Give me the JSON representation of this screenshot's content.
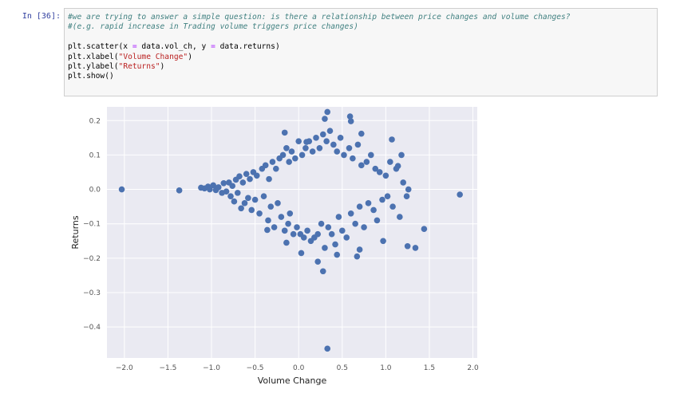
{
  "cell": {
    "prompt": "In [36]:",
    "comment1": "#we are trying to answer a simple question: is there a relationship between price changes and volume changes?",
    "comment2": "#(e.g. rapid increase in Trading volume triggers price changes)",
    "code1_pre": "plt.scatter(x ",
    "code1_eq1": "=",
    "code1_mid": " data.vol_ch, y ",
    "code1_eq2": "=",
    "code1_post": " data.returns)",
    "code2_pre": "plt.xlabel(",
    "code2_str": "\"Volume Change\"",
    "code2_post": ")",
    "code3_pre": "plt.ylabel(",
    "code3_str": "\"Returns\"",
    "code3_post": ")",
    "code4": "plt.show()"
  },
  "chart_data": {
    "type": "scatter",
    "xlabel": "Volume Change",
    "ylabel": "Returns",
    "xlim": [
      -2.2,
      2.05
    ],
    "ylim": [
      -0.49,
      0.24
    ],
    "x_ticks": [
      "−2.0",
      "−1.5",
      "−1.0",
      "−0.5",
      "0.0",
      "0.5",
      "1.0",
      "1.5",
      "2.0"
    ],
    "x_tick_values": [
      -2.0,
      -1.5,
      -1.0,
      -0.5,
      0.0,
      0.5,
      1.0,
      1.5,
      2.0
    ],
    "y_ticks": [
      "0.2",
      "0.1",
      "0.0",
      "−0.1",
      "−0.2",
      "−0.3",
      "−0.4"
    ],
    "y_tick_values": [
      0.2,
      0.1,
      0.0,
      -0.1,
      -0.2,
      -0.3,
      -0.4
    ],
    "grid": true,
    "background": "#eaeaf2",
    "marker_color": "#4c72b0",
    "points": [
      [
        -2.03,
        0.0
      ],
      [
        -1.37,
        -0.003
      ],
      [
        -1.12,
        0.005
      ],
      [
        -1.08,
        0.003
      ],
      [
        -1.04,
        0.008
      ],
      [
        -1.02,
        0.0
      ],
      [
        -0.98,
        0.012
      ],
      [
        -0.95,
        -0.002
      ],
      [
        -0.92,
        0.006
      ],
      [
        -0.88,
        -0.01
      ],
      [
        -0.86,
        0.018
      ],
      [
        -0.83,
        -0.006
      ],
      [
        -0.8,
        0.02
      ],
      [
        -0.78,
        -0.02
      ],
      [
        -0.76,
        0.01
      ],
      [
        -0.74,
        -0.035
      ],
      [
        -0.72,
        0.028
      ],
      [
        -0.7,
        -0.01
      ],
      [
        -0.68,
        0.038
      ],
      [
        -0.66,
        -0.055
      ],
      [
        -0.64,
        0.02
      ],
      [
        -0.62,
        -0.04
      ],
      [
        -0.6,
        0.045
      ],
      [
        -0.58,
        -0.025
      ],
      [
        -0.56,
        0.03
      ],
      [
        -0.54,
        -0.06
      ],
      [
        -0.52,
        0.05
      ],
      [
        -0.5,
        -0.03
      ],
      [
        -0.48,
        0.04
      ],
      [
        -0.45,
        -0.07
      ],
      [
        -0.42,
        0.06
      ],
      [
        -0.4,
        -0.02
      ],
      [
        -0.38,
        0.07
      ],
      [
        -0.35,
        -0.09
      ],
      [
        -0.34,
        0.03
      ],
      [
        -0.32,
        -0.05
      ],
      [
        -0.3,
        0.08
      ],
      [
        -0.28,
        -0.11
      ],
      [
        -0.26,
        0.06
      ],
      [
        -0.24,
        -0.04
      ],
      [
        -0.22,
        0.09
      ],
      [
        -0.2,
        -0.08
      ],
      [
        -0.18,
        0.1
      ],
      [
        -0.16,
        -0.12
      ],
      [
        -0.14,
        0.12
      ],
      [
        -0.12,
        -0.1
      ],
      [
        -0.11,
        0.08
      ],
      [
        -0.1,
        -0.07
      ],
      [
        -0.08,
        0.11
      ],
      [
        -0.06,
        -0.13
      ],
      [
        -0.04,
        0.09
      ],
      [
        -0.02,
        -0.11
      ],
      [
        0.0,
        0.14
      ],
      [
        0.02,
        -0.13
      ],
      [
        0.04,
        0.1
      ],
      [
        0.06,
        -0.14
      ],
      [
        0.08,
        0.12
      ],
      [
        0.1,
        -0.12
      ],
      [
        0.12,
        0.14
      ],
      [
        0.14,
        -0.15
      ],
      [
        0.16,
        0.11
      ],
      [
        0.18,
        -0.14
      ],
      [
        0.2,
        0.15
      ],
      [
        0.22,
        -0.13
      ],
      [
        0.24,
        0.12
      ],
      [
        0.26,
        -0.1
      ],
      [
        0.28,
        0.16
      ],
      [
        0.3,
        -0.17
      ],
      [
        0.32,
        0.14
      ],
      [
        0.34,
        -0.11
      ],
      [
        0.36,
        0.17
      ],
      [
        0.38,
        -0.13
      ],
      [
        0.4,
        0.13
      ],
      [
        0.42,
        -0.16
      ],
      [
        0.44,
        0.11
      ],
      [
        0.46,
        -0.08
      ],
      [
        0.48,
        0.15
      ],
      [
        0.5,
        -0.12
      ],
      [
        0.52,
        0.1
      ],
      [
        0.55,
        -0.14
      ],
      [
        0.58,
        0.12
      ],
      [
        0.6,
        -0.07
      ],
      [
        0.62,
        0.09
      ],
      [
        0.65,
        -0.1
      ],
      [
        0.68,
        0.13
      ],
      [
        0.7,
        -0.05
      ],
      [
        0.72,
        0.07
      ],
      [
        0.75,
        -0.11
      ],
      [
        0.78,
        0.08
      ],
      [
        0.8,
        -0.04
      ],
      [
        0.83,
        0.1
      ],
      [
        0.86,
        -0.06
      ],
      [
        0.88,
        0.06
      ],
      [
        0.9,
        -0.09
      ],
      [
        0.93,
        0.05
      ],
      [
        0.96,
        -0.03
      ],
      [
        1.0,
        0.04
      ],
      [
        1.02,
        -0.02
      ],
      [
        1.05,
        0.08
      ],
      [
        1.08,
        -0.05
      ],
      [
        1.12,
        0.06
      ],
      [
        1.16,
        -0.08
      ],
      [
        1.2,
        0.02
      ],
      [
        1.24,
        -0.02
      ],
      [
        0.33,
        0.225
      ],
      [
        0.59,
        0.212
      ],
      [
        0.6,
        0.198
      ],
      [
        -0.16,
        0.165
      ],
      [
        0.72,
        0.162
      ],
      [
        0.3,
        0.205
      ],
      [
        0.09,
        0.138
      ],
      [
        1.07,
        0.145
      ],
      [
        0.7,
        -0.175
      ],
      [
        0.44,
        -0.19
      ],
      [
        0.22,
        -0.21
      ],
      [
        0.28,
        -0.238
      ],
      [
        0.33,
        -0.463
      ],
      [
        1.25,
        -0.165
      ],
      [
        1.34,
        -0.17
      ],
      [
        1.44,
        -0.115
      ],
      [
        1.85,
        -0.015
      ],
      [
        1.26,
        0.0
      ],
      [
        1.18,
        0.1
      ],
      [
        1.14,
        0.068
      ],
      [
        0.97,
        -0.15
      ],
      [
        0.67,
        -0.195
      ],
      [
        -0.14,
        -0.155
      ],
      [
        -0.36,
        -0.118
      ],
      [
        0.03,
        -0.185
      ]
    ]
  }
}
